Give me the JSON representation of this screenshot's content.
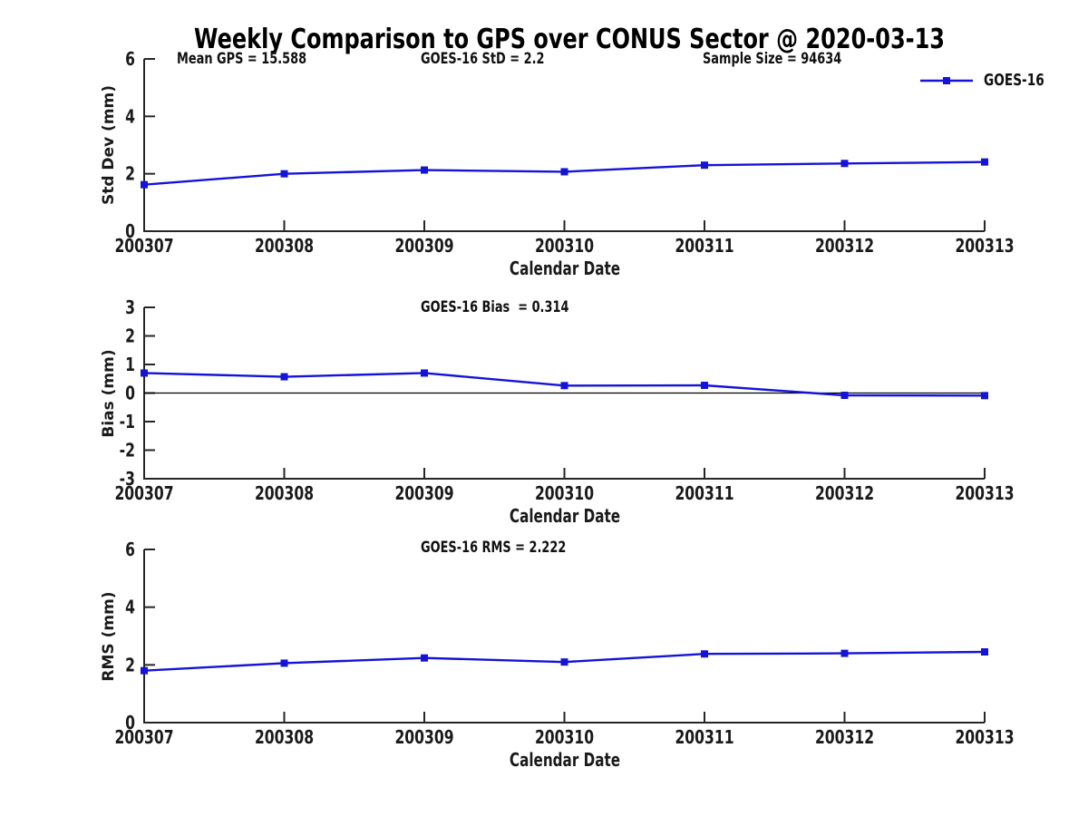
{
  "title": "Weekly Comparison to GPS over CONUS Sector @ 2020-03-13",
  "colors": {
    "series": "#1414d8",
    "axis": "#262626",
    "zero_line": "#000000",
    "background": "#ffffff"
  },
  "chart_data": [
    {
      "type": "line",
      "categories": [
        "200307",
        "200308",
        "200309",
        "200310",
        "200311",
        "200312",
        "200313"
      ],
      "series": [
        {
          "name": "GOES-16",
          "values": [
            1.62,
            2.0,
            2.13,
            2.07,
            2.3,
            2.36,
            2.41
          ]
        }
      ],
      "xlabel": "Calendar Date",
      "ylabel": "Std Dev (mm)",
      "ylim": [
        0,
        6
      ],
      "yticks": [
        0,
        2,
        4,
        6
      ],
      "grid": false,
      "legend": {
        "label": "GOES-16",
        "position": "top-right"
      },
      "annotations": [
        "Mean GPS = 15.588",
        "GOES-16 StD = 2.2",
        "Sample Size = 94634"
      ]
    },
    {
      "type": "line",
      "categories": [
        "200307",
        "200308",
        "200309",
        "200310",
        "200311",
        "200312",
        "200313"
      ],
      "series": [
        {
          "name": "GOES-16",
          "values": [
            0.7,
            0.57,
            0.7,
            0.26,
            0.27,
            -0.08,
            -0.09
          ]
        }
      ],
      "xlabel": "Calendar Date",
      "ylabel": "Bias (mm)",
      "ylim": [
        -3,
        3
      ],
      "yticks": [
        3,
        2,
        1,
        0,
        -1,
        -2,
        -3
      ],
      "grid": false,
      "zero_line": true,
      "annotations": [
        "GOES-16 Bias  = 0.314"
      ]
    },
    {
      "type": "line",
      "categories": [
        "200307",
        "200308",
        "200309",
        "200310",
        "200311",
        "200312",
        "200313"
      ],
      "series": [
        {
          "name": "GOES-16",
          "values": [
            1.8,
            2.06,
            2.24,
            2.1,
            2.38,
            2.4,
            2.45
          ]
        }
      ],
      "xlabel": "Calendar Date",
      "ylabel": "RMS (mm)",
      "ylim": [
        0,
        6
      ],
      "yticks": [
        0,
        2,
        4,
        6
      ],
      "grid": false,
      "annotations": [
        "GOES-16 RMS = 2.222"
      ]
    }
  ]
}
